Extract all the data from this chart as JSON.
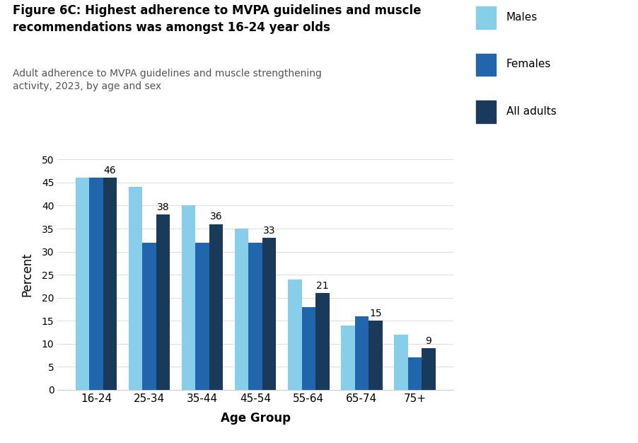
{
  "title_bold": "Figure 6C: Highest adherence to MVPA guidelines and muscle\nrecommendations was amongst 16-24 year olds",
  "subtitle": "Adult adherence to MVPA guidelines and muscle strengthening\nactivity, 2023, by age and sex",
  "xlabel": "Age Group",
  "ylabel": "Percent",
  "age_groups": [
    "16-24",
    "25-34",
    "35-44",
    "45-54",
    "55-64",
    "65-74",
    "75+"
  ],
  "males": [
    46,
    44,
    40,
    35,
    24,
    14,
    12
  ],
  "females": [
    46,
    32,
    32,
    32,
    18,
    16,
    7
  ],
  "all": [
    46,
    38,
    36,
    33,
    21,
    15,
    9
  ],
  "color_males": "#87CEEB",
  "color_females": "#2166AC",
  "color_all": "#1A3A5C",
  "ylim": [
    0,
    50
  ],
  "yticks": [
    0,
    5,
    10,
    15,
    20,
    25,
    30,
    35,
    40,
    45,
    50
  ],
  "legend_labels": [
    "Males",
    "Females",
    "All adults"
  ],
  "bar_width": 0.26,
  "annotation_labels": [
    46,
    38,
    36,
    33,
    21,
    15,
    9
  ]
}
